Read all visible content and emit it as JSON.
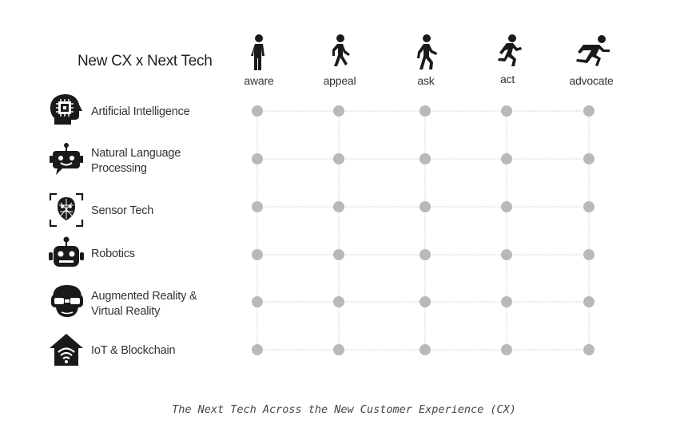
{
  "title": "New CX x Next Tech",
  "caption": "The Next Tech Across the New Customer Experience (CX)",
  "colors": {
    "dot": "#b9b9b9",
    "line": "#c8c8c8",
    "icon": "#1a1a1a"
  },
  "stages": [
    {
      "label": "aware",
      "icon": "standing-person-icon"
    },
    {
      "label": "appeal",
      "icon": "walking-person-icon"
    },
    {
      "label": "ask",
      "icon": "walking-fast-person-icon"
    },
    {
      "label": "act",
      "icon": "running-person-icon"
    },
    {
      "label": "advocate",
      "icon": "sprinting-person-icon"
    }
  ],
  "technologies": [
    {
      "lines": [
        "Artificial Intelligence"
      ],
      "icon": "ai-head-chip-icon"
    },
    {
      "lines": [
        "Natural Language",
        "Processing"
      ],
      "icon": "chatbot-icon"
    },
    {
      "lines": [
        "Sensor Tech"
      ],
      "icon": "face-scan-icon"
    },
    {
      "lines": [
        "Robotics"
      ],
      "icon": "robot-icon"
    },
    {
      "lines": [
        "Augmented Reality &",
        "Virtual Reality"
      ],
      "icon": "vr-headset-icon"
    },
    {
      "lines": [
        "IoT & Blockchain"
      ],
      "icon": "smart-home-icon"
    }
  ]
}
